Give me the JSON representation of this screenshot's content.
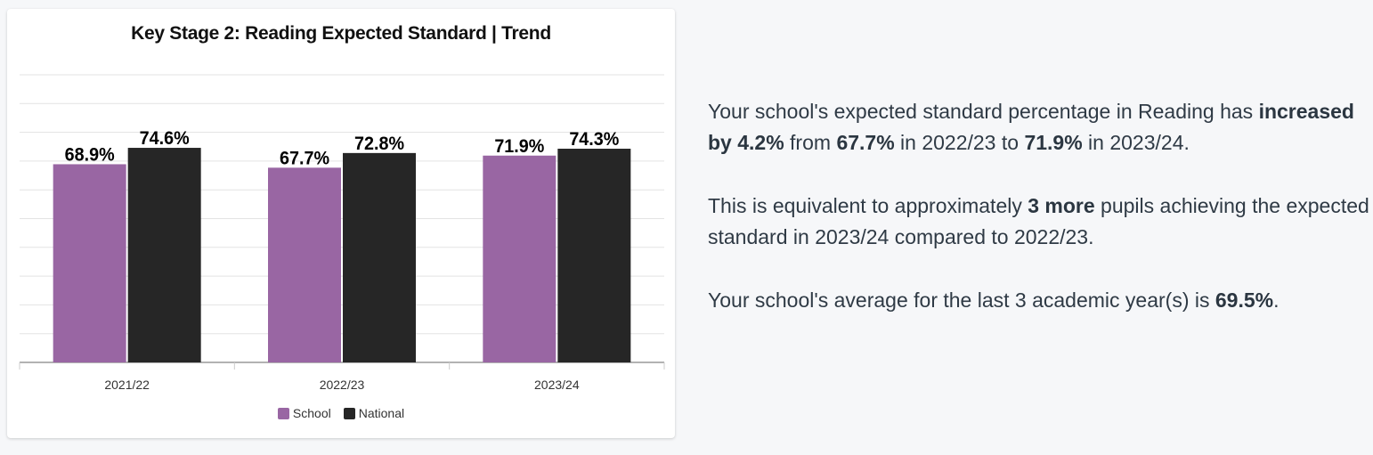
{
  "chart_data": {
    "type": "bar",
    "title": "Key Stage 2: Reading Expected Standard | Trend",
    "xlabel": "",
    "ylabel": "",
    "categories": [
      "2021/22",
      "2022/23",
      "2023/24"
    ],
    "series": [
      {
        "name": "School",
        "values": [
          68.9,
          67.7,
          71.9
        ],
        "labels": [
          "68.9%",
          "67.7%",
          "71.9%"
        ],
        "color": "#9966a3"
      },
      {
        "name": "National",
        "values": [
          74.6,
          72.8,
          74.3
        ],
        "labels": [
          "74.6%",
          "72.8%",
          "74.3%"
        ],
        "color": "#262626"
      }
    ],
    "ylim": [
      0,
      100
    ],
    "grid": true,
    "legend": "bottom"
  },
  "summary": {
    "p1": {
      "a": "Your school's expected standard percentage in Reading has ",
      "b": "increased by 4.2%",
      "c": " from ",
      "d": "67.7%",
      "e": " in 2022/23 to ",
      "f": "71.9%",
      "g": " in 2023/24."
    },
    "p2": {
      "a": "This is equivalent to approximately ",
      "b": "3 more",
      "c": " pupils achieving the expected standard in 2023/24 compared to 2022/23."
    },
    "p3": {
      "a": "Your school's average for the last 3 academic year(s) is ",
      "b": "69.5%",
      "c": "."
    }
  }
}
